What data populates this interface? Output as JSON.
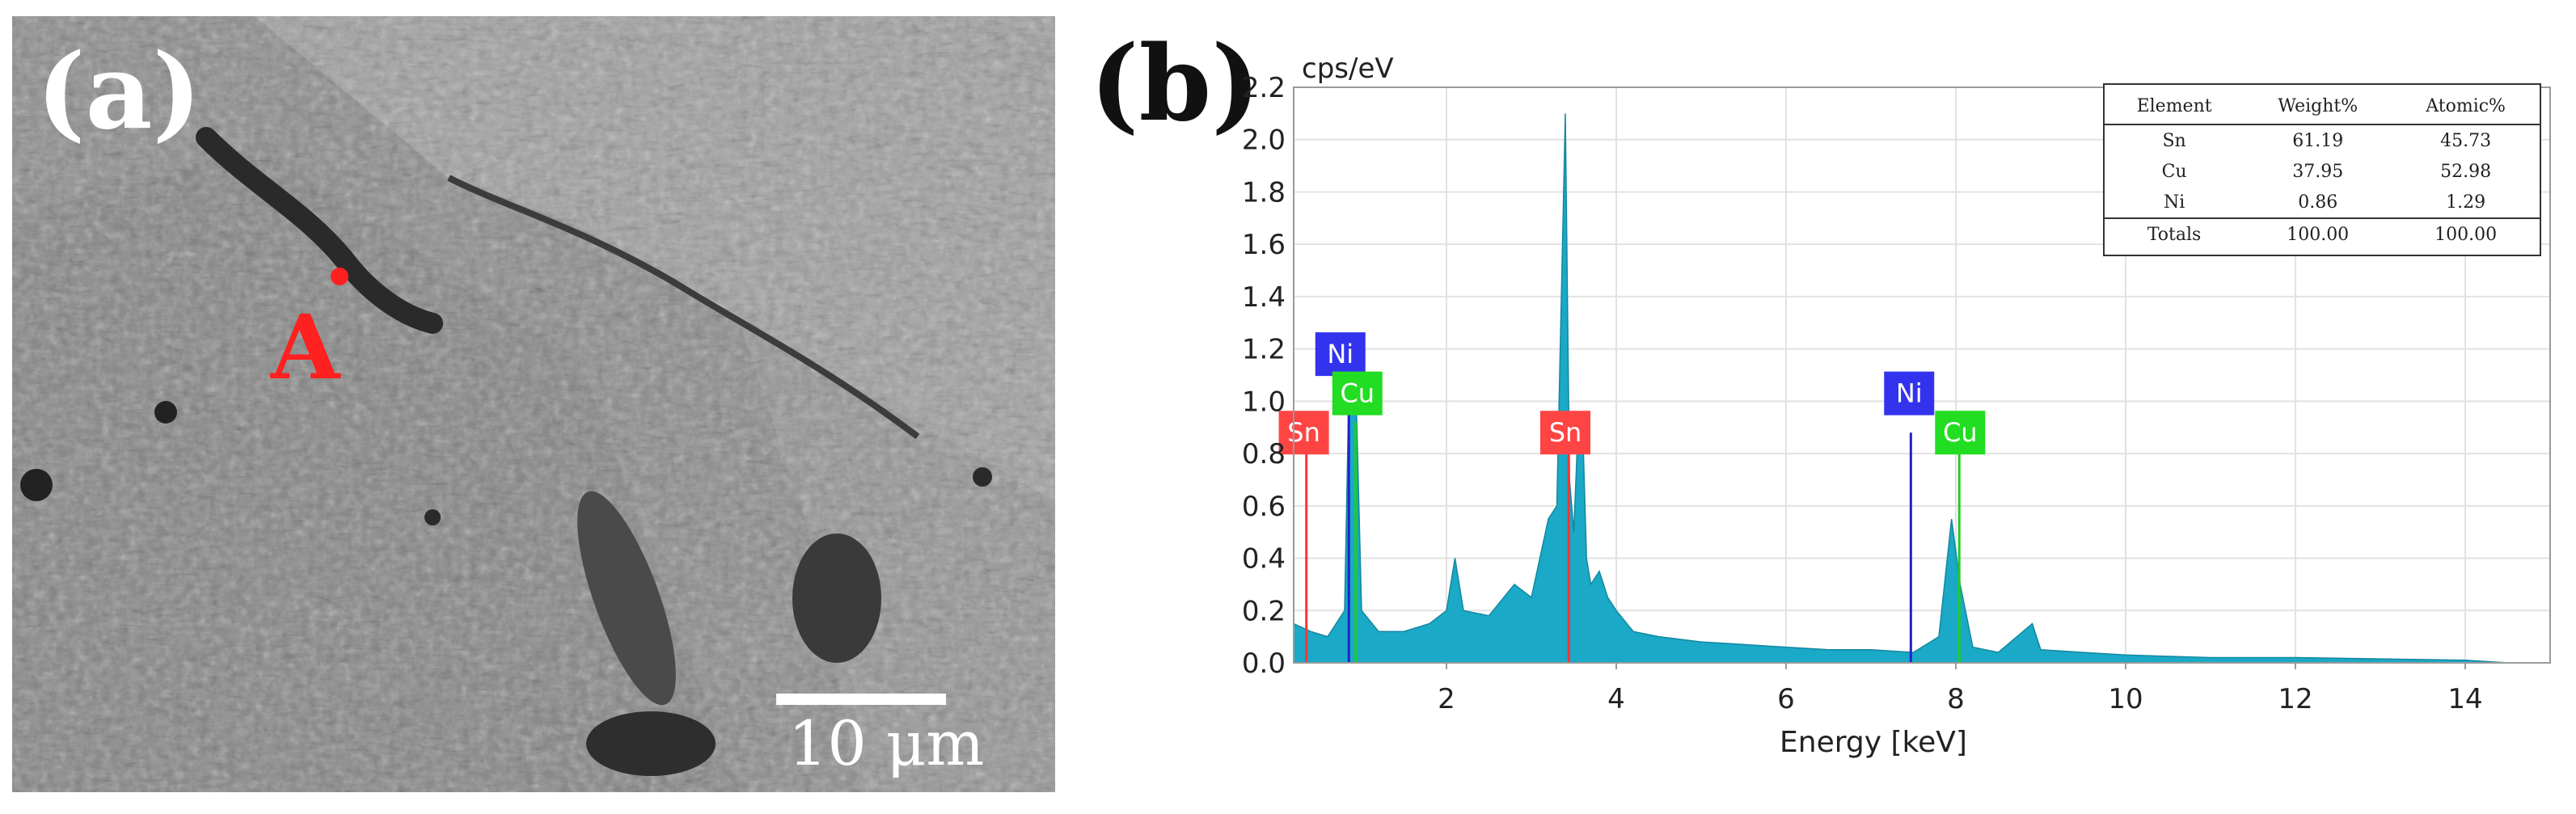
{
  "panel_a": {
    "label": "(a)",
    "point_label": "A",
    "scale_bar_text": "10 μm",
    "colors": {
      "point": "#ff2020",
      "scale": "#ffffff"
    }
  },
  "panel_b": {
    "label": "(b)",
    "table": {
      "headers": [
        "Element",
        "Weight%",
        "Atomic%"
      ],
      "rows": [
        [
          "Sn",
          "61.19",
          "45.73"
        ],
        [
          "Cu",
          "37.95",
          "52.98"
        ],
        [
          "Ni",
          "0.86",
          "1.29"
        ]
      ],
      "totals": [
        "Totals",
        "100.00",
        "100.00"
      ]
    }
  },
  "chart_data": {
    "type": "area",
    "title": "",
    "xlabel": "Energy [keV]",
    "ylabel": "cps/eV",
    "xlim": [
      0.2,
      15.0
    ],
    "ylim": [
      0,
      2.2
    ],
    "xticks": [
      2,
      4,
      6,
      8,
      10,
      12,
      14
    ],
    "yticks": [
      0.0,
      0.2,
      0.4,
      0.6,
      0.8,
      1.0,
      1.2,
      1.4,
      1.6,
      1.8,
      2.0,
      2.2
    ],
    "grid": true,
    "spectrum_color": "#1aa9c7",
    "spectrum": {
      "x": [
        0.2,
        0.4,
        0.6,
        0.8,
        0.85,
        0.93,
        1.0,
        1.2,
        1.5,
        1.8,
        2.0,
        2.1,
        2.2,
        2.5,
        2.8,
        3.0,
        3.2,
        3.3,
        3.4,
        3.45,
        3.5,
        3.55,
        3.6,
        3.65,
        3.7,
        3.8,
        3.9,
        4.0,
        4.2,
        4.5,
        5.0,
        5.5,
        6.0,
        6.5,
        7.0,
        7.5,
        7.8,
        7.95,
        8.05,
        8.2,
        8.5,
        8.9,
        9.0,
        9.5,
        10.0,
        11.0,
        12.0,
        13.0,
        14.0,
        14.5
      ],
      "y": [
        0.15,
        0.12,
        0.1,
        0.2,
        1.05,
        1.1,
        0.2,
        0.12,
        0.12,
        0.15,
        0.2,
        0.4,
        0.2,
        0.18,
        0.3,
        0.25,
        0.55,
        0.6,
        2.1,
        0.7,
        0.5,
        0.9,
        0.95,
        0.4,
        0.3,
        0.35,
        0.25,
        0.2,
        0.12,
        0.1,
        0.08,
        0.07,
        0.06,
        0.05,
        0.05,
        0.04,
        0.1,
        0.55,
        0.3,
        0.06,
        0.04,
        0.15,
        0.05,
        0.04,
        0.03,
        0.02,
        0.02,
        0.015,
        0.01,
        0.0
      ]
    },
    "element_lines": [
      {
        "element": "Sn",
        "energy": 0.35,
        "height": 0.9,
        "color": "#ff3333"
      },
      {
        "element": "Ni",
        "energy": 0.85,
        "height": 1.05,
        "color": "#2222cc"
      },
      {
        "element": "Cu",
        "energy": 0.93,
        "height": 0.92,
        "color": "#22cc22"
      },
      {
        "element": "Sn",
        "energy": 3.44,
        "height": 0.95,
        "color": "#ff3333"
      },
      {
        "element": "Ni",
        "energy": 7.47,
        "height": 0.88,
        "color": "#2222cc"
      },
      {
        "element": "Cu",
        "energy": 8.04,
        "height": 0.8,
        "color": "#22cc22"
      }
    ],
    "element_labels": [
      {
        "text": "Ni",
        "energy": 0.75,
        "level": 1.18,
        "color": "#3333ee"
      },
      {
        "text": "Cu",
        "energy": 0.95,
        "level": 1.03,
        "color": "#22dd22"
      },
      {
        "text": "Sn",
        "energy": 0.32,
        "level": 0.88,
        "color": "#ff4444"
      },
      {
        "text": "Sn",
        "energy": 3.4,
        "level": 0.88,
        "color": "#ff4444"
      },
      {
        "text": "Ni",
        "energy": 7.45,
        "level": 1.03,
        "color": "#3333ee"
      },
      {
        "text": "Cu",
        "energy": 8.05,
        "level": 0.88,
        "color": "#22dd22"
      }
    ]
  }
}
